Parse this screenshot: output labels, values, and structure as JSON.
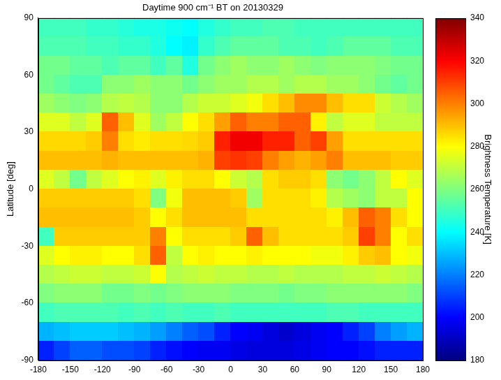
{
  "chart_data": {
    "type": "heatmap",
    "title": "Daytime 900 cm⁻¹ BT on 20130329",
    "ylabel": "Latitude [deg]",
    "color": "jet",
    "grid": false,
    "x": [
      -172.5,
      -157.5,
      -142.5,
      -127.5,
      -112.5,
      -97.5,
      -82.5,
      -67.5,
      -52.5,
      -37.5,
      -22.5,
      -7.5,
      7.5,
      22.5,
      37.5,
      52.5,
      67.5,
      82.5,
      97.5,
      112.5,
      127.5,
      142.5,
      157.5,
      172.5
    ],
    "y": [
      85,
      75,
      65,
      55,
      45,
      35,
      25,
      15,
      5,
      -5,
      -15,
      -25,
      -35,
      -45,
      -55,
      -65,
      -75,
      -85
    ],
    "values": [
      [
        250,
        250,
        250,
        248,
        248,
        246,
        244,
        244,
        242,
        240,
        245,
        248,
        250,
        250,
        252,
        252,
        250,
        250,
        250,
        250,
        250,
        250,
        250,
        250
      ],
      [
        252,
        252,
        252,
        250,
        250,
        248,
        248,
        245,
        240,
        238,
        248,
        252,
        255,
        255,
        255,
        252,
        252,
        250,
        252,
        255,
        255,
        255,
        252,
        252
      ],
      [
        258,
        258,
        255,
        255,
        252,
        255,
        255,
        250,
        255,
        245,
        258,
        262,
        265,
        262,
        262,
        265,
        262,
        260,
        262,
        262,
        262,
        260,
        258,
        258
      ],
      [
        258,
        255,
        252,
        252,
        262,
        262,
        265,
        262,
        262,
        258,
        262,
        265,
        265,
        268,
        268,
        265,
        268,
        268,
        265,
        265,
        262,
        258,
        255,
        258
      ],
      [
        265,
        262,
        260,
        262,
        268,
        270,
        268,
        262,
        262,
        268,
        272,
        272,
        275,
        278,
        285,
        290,
        298,
        298,
        290,
        285,
        285,
        272,
        268,
        265
      ],
      [
        275,
        275,
        270,
        275,
        305,
        290,
        275,
        265,
        270,
        280,
        285,
        295,
        305,
        300,
        300,
        305,
        305,
        282,
        270,
        275,
        275,
        270,
        270,
        270
      ],
      [
        286,
        286,
        286,
        288,
        300,
        285,
        283,
        285,
        285,
        286,
        288,
        315,
        322,
        322,
        315,
        315,
        305,
        310,
        295,
        285,
        285,
        285,
        285,
        285
      ],
      [
        290,
        290,
        290,
        290,
        292,
        290,
        290,
        290,
        290,
        290,
        292,
        310,
        312,
        310,
        300,
        295,
        292,
        295,
        300,
        290,
        290,
        290,
        288,
        288
      ],
      [
        275,
        270,
        258,
        270,
        275,
        280,
        282,
        275,
        282,
        285,
        285,
        280,
        272,
        268,
        285,
        288,
        288,
        285,
        262,
        258,
        262,
        270,
        280,
        275
      ],
      [
        288,
        288,
        288,
        288,
        288,
        288,
        285,
        260,
        278,
        290,
        290,
        290,
        288,
        265,
        285,
        285,
        285,
        282,
        268,
        265,
        262,
        270,
        270,
        280
      ],
      [
        290,
        290,
        290,
        290,
        290,
        290,
        288,
        280,
        285,
        290,
        290,
        290,
        290,
        285,
        285,
        285,
        285,
        285,
        282,
        290,
        305,
        300,
        285,
        280
      ],
      [
        250,
        288,
        288,
        288,
        288,
        288,
        288,
        300,
        280,
        285,
        285,
        285,
        288,
        305,
        290,
        285,
        285,
        285,
        285,
        288,
        310,
        300,
        280,
        285
      ],
      [
        275,
        280,
        282,
        282,
        280,
        280,
        285,
        305,
        270,
        280,
        282,
        280,
        280,
        282,
        280,
        280,
        280,
        278,
        278,
        282,
        288,
        290,
        280,
        278
      ],
      [
        268,
        270,
        272,
        272,
        270,
        270,
        272,
        280,
        268,
        270,
        272,
        270,
        270,
        268,
        268,
        270,
        268,
        268,
        268,
        270,
        270,
        272,
        270,
        268
      ],
      [
        260,
        262,
        262,
        262,
        258,
        258,
        260,
        258,
        260,
        262,
        262,
        262,
        260,
        260,
        260,
        258,
        260,
        260,
        262,
        262,
        262,
        262,
        262,
        260
      ],
      [
        250,
        252,
        252,
        252,
        252,
        250,
        252,
        250,
        252,
        250,
        250,
        252,
        250,
        250,
        250,
        250,
        250,
        250,
        252,
        252,
        250,
        250,
        250,
        250
      ],
      [
        228,
        230,
        232,
        232,
        232,
        230,
        228,
        225,
        220,
        215,
        212,
        205,
        200,
        198,
        195,
        192,
        195,
        198,
        200,
        205,
        210,
        220,
        225,
        228
      ],
      [
        205,
        210,
        215,
        215,
        212,
        212,
        210,
        205,
        202,
        200,
        198,
        198,
        196,
        195,
        195,
        195,
        196,
        198,
        200,
        200,
        202,
        205,
        205,
        205
      ]
    ],
    "xlim": [
      -180,
      180
    ],
    "xticks": [
      -180,
      -150,
      -120,
      -90,
      -60,
      -30,
      0,
      30,
      60,
      90,
      120,
      150,
      180
    ],
    "ylim": [
      -90,
      90
    ],
    "yticks": [
      -90,
      -60,
      -30,
      0,
      30,
      60,
      90
    ],
    "colorbar": {
      "label": "Brightness Temperature [K]",
      "range": [
        180,
        340
      ],
      "ticks": [
        180,
        200,
        220,
        240,
        260,
        280,
        300,
        320,
        340
      ]
    }
  }
}
